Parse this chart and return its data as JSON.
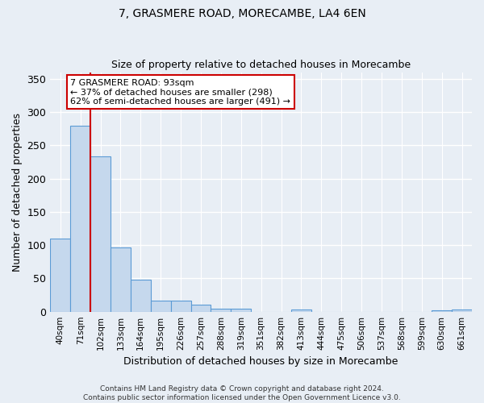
{
  "title1": "7, GRASMERE ROAD, MORECAMBE, LA4 6EN",
  "title2": "Size of property relative to detached houses in Morecambe",
  "xlabel": "Distribution of detached houses by size in Morecambe",
  "ylabel": "Number of detached properties",
  "bar_color": "#c5d8ed",
  "bar_edge_color": "#5b9bd5",
  "bg_color": "#e8eef5",
  "grid_color": "#ffffff",
  "categories": [
    "40sqm",
    "71sqm",
    "102sqm",
    "133sqm",
    "164sqm",
    "195sqm",
    "226sqm",
    "257sqm",
    "288sqm",
    "319sqm",
    "351sqm",
    "382sqm",
    "413sqm",
    "444sqm",
    "475sqm",
    "506sqm",
    "537sqm",
    "568sqm",
    "599sqm",
    "630sqm",
    "661sqm"
  ],
  "values": [
    110,
    280,
    234,
    96,
    48,
    16,
    17,
    11,
    5,
    4,
    0,
    0,
    3,
    0,
    0,
    0,
    0,
    0,
    0,
    2,
    3
  ],
  "ylim": [
    0,
    360
  ],
  "yticks": [
    0,
    50,
    100,
    150,
    200,
    250,
    300,
    350
  ],
  "vline_x_idx": 1,
  "annotation_text": "7 GRASMERE ROAD: 93sqm\n← 37% of detached houses are smaller (298)\n62% of semi-detached houses are larger (491) →",
  "annotation_box_color": "#ffffff",
  "annotation_box_edge": "#cc0000",
  "footnote": "Contains HM Land Registry data © Crown copyright and database right 2024.\nContains public sector information licensed under the Open Government Licence v3.0."
}
